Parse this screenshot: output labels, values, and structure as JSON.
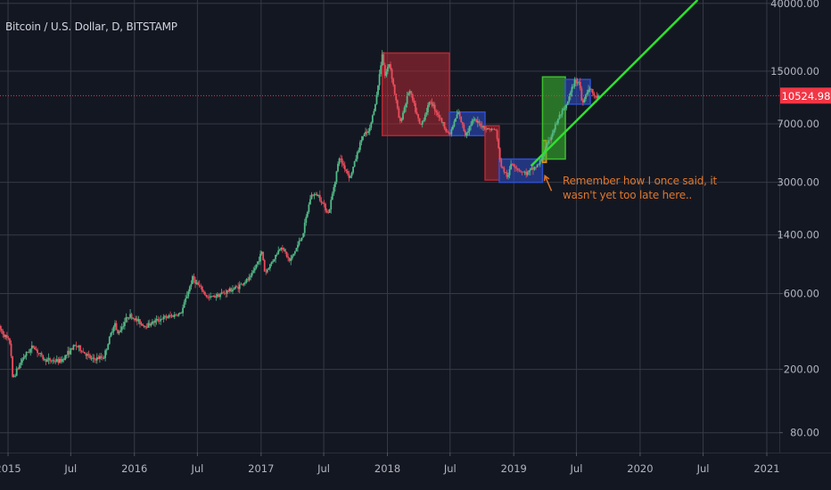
{
  "chart_data": {
    "type": "candlestick",
    "title": "Bitcoin / U.S. Dollar, D, BITSTAMP",
    "y_scale": "log",
    "ylim": [
      60,
      42000
    ],
    "y_ticks": [
      "40000.00",
      "15000.00",
      "7000.00",
      "3000.00",
      "1400.00",
      "600.00",
      "200.00",
      "80.00"
    ],
    "x_range": [
      "2014-12",
      "2021-01"
    ],
    "x_ticks": [
      {
        "date": "2015-01",
        "label": "2015"
      },
      {
        "date": "2015-07",
        "label": "Jul"
      },
      {
        "date": "2016-01",
        "label": "2016"
      },
      {
        "date": "2016-07",
        "label": "Jul"
      },
      {
        "date": "2017-01",
        "label": "2017"
      },
      {
        "date": "2017-07",
        "label": "Jul"
      },
      {
        "date": "2018-01",
        "label": "2018"
      },
      {
        "date": "2018-07",
        "label": "Jul"
      },
      {
        "date": "2019-01",
        "label": "2019"
      },
      {
        "date": "2019-07",
        "label": "Jul"
      },
      {
        "date": "2020-01",
        "label": "2020"
      },
      {
        "date": "2020-07",
        "label": "Jul"
      },
      {
        "date": "2021-01",
        "label": "2021"
      }
    ],
    "current_price": {
      "value": 10524.98,
      "label": "10524.98",
      "color": "#f23645"
    },
    "price_series": {
      "name": "",
      "points": [
        [
          "2014-12-01",
          380
        ],
        [
          "2015-01-08",
          290
        ],
        [
          "2015-01-14",
          175
        ],
        [
          "2015-02-15",
          240
        ],
        [
          "2015-03-15",
          280
        ],
        [
          "2015-04-15",
          230
        ],
        [
          "2015-06-01",
          225
        ],
        [
          "2015-07-15",
          285
        ],
        [
          "2015-09-01",
          230
        ],
        [
          "2015-10-05",
          240
        ],
        [
          "2015-11-05",
          400
        ],
        [
          "2015-11-12",
          330
        ],
        [
          "2015-12-15",
          440
        ],
        [
          "2016-02-01",
          375
        ],
        [
          "2016-03-15",
          415
        ],
        [
          "2016-05-15",
          450
        ],
        [
          "2016-06-17",
          750
        ],
        [
          "2016-08-01",
          560
        ],
        [
          "2016-09-15",
          605
        ],
        [
          "2016-10-25",
          660
        ],
        [
          "2016-12-01",
          750
        ],
        [
          "2017-01-04",
          1100
        ],
        [
          "2017-01-12",
          800
        ],
        [
          "2017-03-01",
          1200
        ],
        [
          "2017-03-25",
          950
        ],
        [
          "2017-05-01",
          1400
        ],
        [
          "2017-05-25",
          2500
        ],
        [
          "2017-06-15",
          2500
        ],
        [
          "2017-07-15",
          1900
        ],
        [
          "2017-08-15",
          4300
        ],
        [
          "2017-09-15",
          3200
        ],
        [
          "2017-10-20",
          5800
        ],
        [
          "2017-11-10",
          6300
        ],
        [
          "2017-12-01",
          10500
        ],
        [
          "2017-12-17",
          19500
        ],
        [
          "2017-12-25",
          14000
        ],
        [
          "2018-01-07",
          17000
        ],
        [
          "2018-02-06",
          7000
        ],
        [
          "2018-03-05",
          11500
        ],
        [
          "2018-04-06",
          6700
        ],
        [
          "2018-05-05",
          9800
        ],
        [
          "2018-06-29",
          5900
        ],
        [
          "2018-07-24",
          8300
        ],
        [
          "2018-08-14",
          6000
        ],
        [
          "2018-09-05",
          7400
        ],
        [
          "2018-10-15",
          6500
        ],
        [
          "2018-11-10",
          6400
        ],
        [
          "2018-11-25",
          3800
        ],
        [
          "2018-12-15",
          3200
        ],
        [
          "2018-12-25",
          4000
        ],
        [
          "2019-01-15",
          3600
        ],
        [
          "2019-02-07",
          3400
        ],
        [
          "2019-03-15",
          3900
        ],
        [
          "2019-04-05",
          5000
        ],
        [
          "2019-05-15",
          8000
        ],
        [
          "2019-05-30",
          8700
        ],
        [
          "2019-06-26",
          13000
        ],
        [
          "2019-07-10",
          12800
        ],
        [
          "2019-07-17",
          9400
        ],
        [
          "2019-08-06",
          11900
        ],
        [
          "2019-08-25",
          10200
        ],
        [
          "2019-09-03",
          10520
        ]
      ]
    },
    "annotations": {
      "boxes": [
        {
          "start": "2017-12-17",
          "end": "2018-06-29",
          "low": 5900,
          "high": 19500,
          "color": "#b22833"
        },
        {
          "start": "2018-06-29",
          "end": "2018-10-10",
          "low": 5900,
          "high": 8300,
          "color": "#2f4fcc"
        },
        {
          "start": "2018-10-10",
          "end": "2018-11-20",
          "low": 3100,
          "high": 6800,
          "color": "#b22833"
        },
        {
          "start": "2018-11-20",
          "end": "2019-03-25",
          "low": 3000,
          "high": 4200,
          "color": "#2f4fcc"
        },
        {
          "start": "2019-03-25",
          "end": "2019-04-05",
          "low": 4000,
          "high": 5500,
          "color": "#d9961c"
        },
        {
          "start": "2019-03-25",
          "end": "2019-05-30",
          "low": 4200,
          "high": 13800,
          "color": "#3cbf2e"
        },
        {
          "start": "2019-05-30",
          "end": "2019-08-10",
          "low": 9300,
          "high": 13300,
          "color": "#2f4fcc"
        }
      ],
      "trendline": {
        "from": [
          "2019-02-20",
          3800
        ],
        "to": [
          "2020-06-15",
          42000
        ],
        "color": "#2ee02e"
      },
      "note": {
        "line1": "Remember how I once said, it",
        "line2": "wasn't yet too late here..",
        "color": "#e0762b"
      },
      "arrow": {
        "from": [
          "2019-04-20",
          2650
        ],
        "to": [
          "2019-04-01",
          3300
        ],
        "color": "#e0762b"
      }
    }
  }
}
